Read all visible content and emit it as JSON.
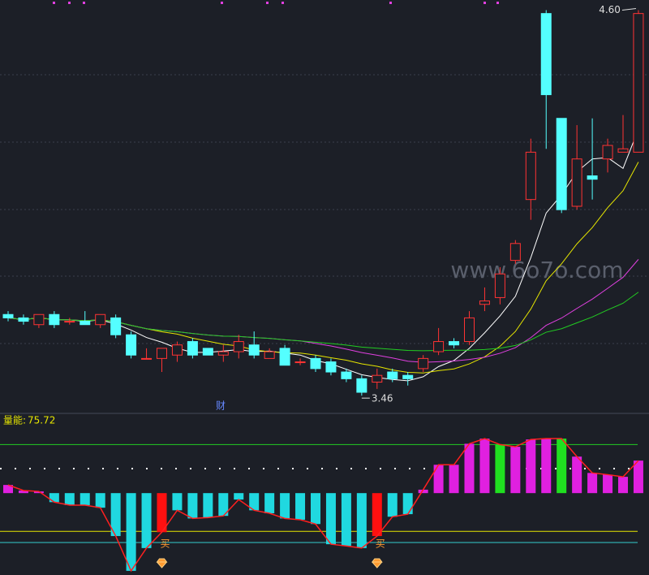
{
  "chart_data": [
    {
      "type": "candlestick",
      "ylim": [
        3.41,
        4.63
      ],
      "up_color": "#ff3333",
      "down_color": "#54ffff",
      "ohlc": [
        [
          3.7,
          3.71,
          3.68,
          3.69
        ],
        [
          3.69,
          3.7,
          3.67,
          3.68
        ],
        [
          3.67,
          3.7,
          3.66,
          3.7
        ],
        [
          3.7,
          3.71,
          3.66,
          3.67
        ],
        [
          3.68,
          3.69,
          3.67,
          3.68
        ],
        [
          3.68,
          3.71,
          3.67,
          3.67
        ],
        [
          3.67,
          3.7,
          3.66,
          3.7
        ],
        [
          3.69,
          3.7,
          3.63,
          3.64
        ],
        [
          3.64,
          3.65,
          3.57,
          3.58
        ],
        [
          3.57,
          3.6,
          3.57,
          3.57
        ],
        [
          3.57,
          3.6,
          3.53,
          3.6
        ],
        [
          3.58,
          3.62,
          3.56,
          3.61
        ],
        [
          3.62,
          3.63,
          3.57,
          3.58
        ],
        [
          3.6,
          3.6,
          3.58,
          3.58
        ],
        [
          3.58,
          3.61,
          3.56,
          3.59
        ],
        [
          3.59,
          3.64,
          3.57,
          3.62
        ],
        [
          3.61,
          3.65,
          3.57,
          3.58
        ],
        [
          3.57,
          3.6,
          3.57,
          3.59
        ],
        [
          3.6,
          3.61,
          3.55,
          3.55
        ],
        [
          3.56,
          3.57,
          3.55,
          3.56
        ],
        [
          3.57,
          3.58,
          3.53,
          3.54
        ],
        [
          3.56,
          3.57,
          3.52,
          3.53
        ],
        [
          3.53,
          3.54,
          3.5,
          3.51
        ],
        [
          3.51,
          3.52,
          3.46,
          3.47
        ],
        [
          3.5,
          3.54,
          3.48,
          3.52
        ],
        [
          3.53,
          3.54,
          3.5,
          3.51
        ],
        [
          3.52,
          3.53,
          3.49,
          3.51
        ],
        [
          3.54,
          3.58,
          3.53,
          3.57
        ],
        [
          3.59,
          3.66,
          3.58,
          3.62
        ],
        [
          3.62,
          3.63,
          3.6,
          3.61
        ],
        [
          3.62,
          3.71,
          3.61,
          3.69
        ],
        [
          3.73,
          3.78,
          3.71,
          3.74
        ],
        [
          3.75,
          3.84,
          3.73,
          3.82
        ],
        [
          3.86,
          3.92,
          3.85,
          3.91
        ],
        [
          4.04,
          4.22,
          3.98,
          4.18
        ],
        [
          4.59,
          4.6,
          4.19,
          4.35
        ],
        [
          4.28,
          4.28,
          4.0,
          4.01
        ],
        [
          4.02,
          4.26,
          4.01,
          4.16
        ],
        [
          4.11,
          4.28,
          4.04,
          4.1
        ],
        [
          4.16,
          4.22,
          4.12,
          4.2
        ],
        [
          4.18,
          4.29,
          4.18,
          4.19
        ],
        [
          4.18,
          4.6,
          4.18,
          4.59
        ]
      ],
      "moving_averages": [
        {
          "period": 5,
          "color": "#ffffff"
        },
        {
          "period": 10,
          "color": "#e6e600"
        },
        {
          "period": 20,
          "color": "#e040e0"
        },
        {
          "period": 30,
          "color": "#22cc22"
        }
      ],
      "high_marker": {
        "value": 4.6,
        "label": "4.60"
      },
      "low_marker": {
        "value": 3.46,
        "label": "3.46"
      },
      "note": "财",
      "watermark": "www.6o7o.com"
    },
    {
      "type": "bar",
      "name": "量能:",
      "ylim": [
        -185,
        180
      ],
      "positive_color": "#e020e0",
      "negative_color": "#20d8e0",
      "signal_color": "#ff1010",
      "peak_color": "#20e020",
      "values": [
        19,
        6,
        4,
        -21,
        -28,
        -28,
        -34,
        -100,
        -181,
        -128,
        -91,
        -40,
        -59,
        -57,
        -53,
        -15,
        -40,
        -47,
        -59,
        -62,
        -72,
        -119,
        -123,
        -128,
        -100,
        -55,
        -49,
        8,
        66,
        66,
        115,
        127,
        113,
        108,
        125,
        127,
        127,
        85,
        47,
        43,
        38,
        75.72
      ],
      "signals": [
        {
          "index": 10,
          "label": "买"
        },
        {
          "index": 24,
          "label": "买"
        }
      ],
      "peaks": [
        32,
        36
      ],
      "ref_lines": [
        {
          "value": 113,
          "color": "#22cc22"
        },
        {
          "value": 57,
          "color": "#ffffff"
        },
        {
          "value": -89,
          "color": "#e6e600"
        },
        {
          "value": -115,
          "color": "#33cccc"
        }
      ]
    }
  ]
}
